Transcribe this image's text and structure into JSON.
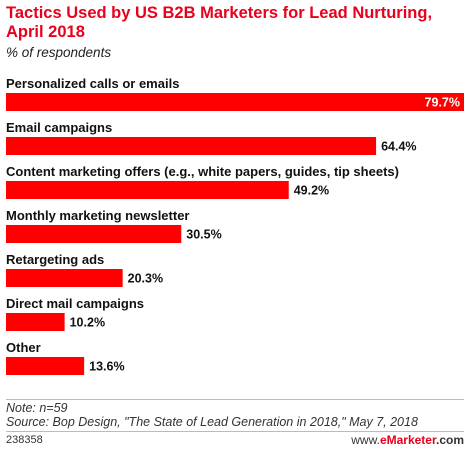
{
  "header": {
    "title": "Tactics Used by US B2B Marketers for Lead Nurturing, April 2018",
    "subtitle": "% of respondents"
  },
  "chart_data": {
    "type": "bar",
    "orientation": "horizontal",
    "title": "Tactics Used by US B2B Marketers for Lead Nurturing, April 2018",
    "subtitle": "% of respondents",
    "categories": [
      "Personalized calls or emails",
      "Email campaigns",
      "Content marketing offers (e.g., white papers, guides, tip sheets)",
      "Monthly marketing newsletter",
      "Retargeting ads",
      "Direct mail campaigns",
      "Other"
    ],
    "values": [
      79.7,
      64.4,
      49.2,
      30.5,
      20.3,
      10.2,
      13.6
    ],
    "value_labels": [
      "79.7%",
      "64.4%",
      "49.2%",
      "30.5%",
      "20.3%",
      "10.2%",
      "13.6%"
    ],
    "xlim": [
      0,
      79.7
    ],
    "bar_color": "#ff0000",
    "grid": false,
    "legend": "none"
  },
  "footer": {
    "note": "Note: n=59",
    "source": "Source: Bop Design, \"The State of Lead Generation in 2018,\" May 7, 2018",
    "code": "238358",
    "site_prefix": "www.",
    "site_brand": "eMarketer",
    "site_suffix": ".com"
  },
  "colors": {
    "accent": "#e8001c",
    "bar": "#ff0000"
  }
}
